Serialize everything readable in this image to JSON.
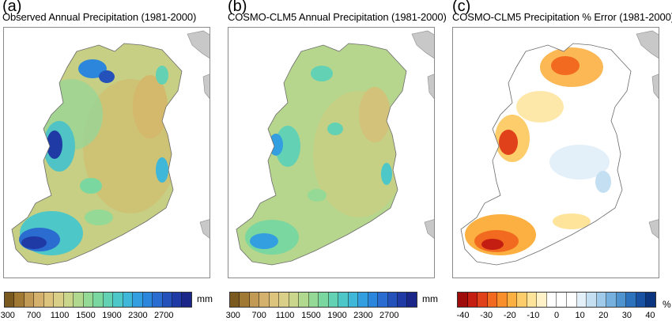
{
  "panels": [
    {
      "letter": "(a)",
      "title": "Observed Annual Precipitation (1981-2000)",
      "unit": "mm",
      "ticks": [
        "300",
        "700",
        "1100",
        "1500",
        "1900",
        "2300",
        "2700"
      ],
      "colors": [
        "#7a5a1e",
        "#a07a35",
        "#c19a55",
        "#d4b26e",
        "#dcc47f",
        "#d9cf88",
        "#c9d68c",
        "#b0d98f",
        "#94d995",
        "#7bd7a0",
        "#63d1b3",
        "#4dc7c8",
        "#3fb7d8",
        "#339fe0",
        "#2c86dc",
        "#2a6ccf",
        "#2551bb",
        "#1f3aa4",
        "#1a2688"
      ]
    },
    {
      "letter": "(b)",
      "title": "COSMO-CLM5 Annual Precipitation (1981-2000)",
      "unit": "mm",
      "ticks": [
        "300",
        "700",
        "1100",
        "1500",
        "1900",
        "2300",
        "2700"
      ],
      "colors": [
        "#7a5a1e",
        "#a07a35",
        "#c19a55",
        "#d4b26e",
        "#dcc47f",
        "#d9cf88",
        "#c9d68c",
        "#b0d98f",
        "#94d995",
        "#7bd7a0",
        "#63d1b3",
        "#4dc7c8",
        "#3fb7d8",
        "#339fe0",
        "#2c86dc",
        "#2a6ccf",
        "#2551bb",
        "#1f3aa4",
        "#1a2688"
      ]
    },
    {
      "letter": "(c)",
      "title": "COSMO-CLM5 Precipitation % Error (1981-2000)",
      "unit": "%",
      "ticks": [
        "-40",
        "-30",
        "-20",
        "-10",
        "0",
        "10",
        "20",
        "30",
        "40"
      ],
      "colors": [
        "#9e0c0c",
        "#c41d12",
        "#e0401a",
        "#f26a1f",
        "#f98f2b",
        "#fbb041",
        "#fdcc6b",
        "#fee49a",
        "#fff2c8",
        "#ffffff",
        "#ffffff",
        "#ffffff",
        "#e3f0fa",
        "#c4dff2",
        "#9fcaea",
        "#76b0de",
        "#4f93cf",
        "#2d72bd",
        "#1952a3",
        "#0c3580"
      ]
    }
  ]
}
